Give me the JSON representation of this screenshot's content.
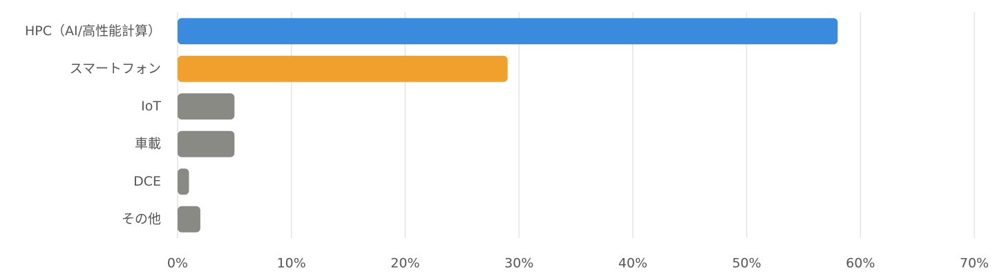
{
  "chart_data": {
    "type": "bar",
    "orientation": "horizontal",
    "categories": [
      "HPC（AI/高性能計算）",
      "スマートフォン",
      "IoT",
      "車載",
      "DCE",
      "その他"
    ],
    "values": [
      58,
      29,
      5,
      5,
      1,
      2
    ],
    "colors": [
      "#3a8ade",
      "#f0a02c",
      "#8a8a84",
      "#8a8a84",
      "#8a8a84",
      "#8a8a84"
    ],
    "xlim": [
      0,
      70
    ],
    "xticks": [
      {
        "value": 0,
        "label": "0%"
      },
      {
        "value": 10,
        "label": "10%"
      },
      {
        "value": 20,
        "label": "20%"
      },
      {
        "value": 30,
        "label": "30%"
      },
      {
        "value": 40,
        "label": "40%"
      },
      {
        "value": 50,
        "label": "50%"
      },
      {
        "value": 60,
        "label": "60%"
      },
      {
        "value": 70,
        "label": "70%"
      }
    ],
    "grid": true
  }
}
